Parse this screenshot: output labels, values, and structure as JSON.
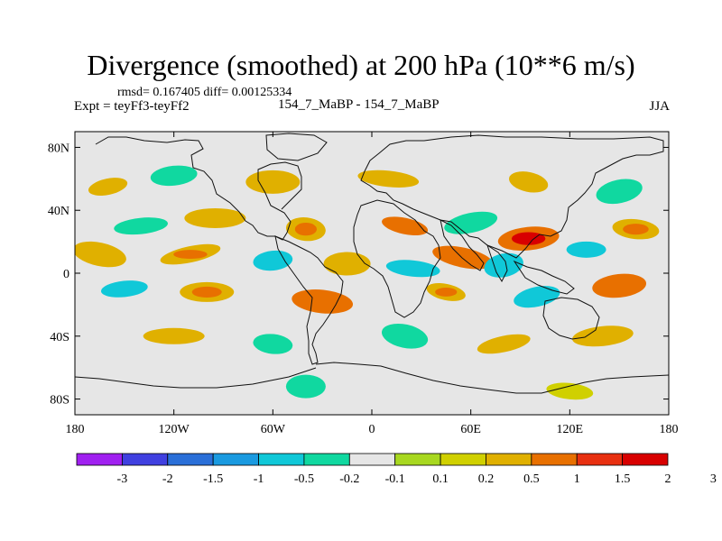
{
  "chart_data": {
    "type": "heatmap",
    "title": "Divergence (smoothed) at 200 hPa (10**6 m/s)",
    "stats_text": "rmsd= 0.167405 diff= 0.00125334",
    "left_label": "Expt = teyFf3-teyFf2",
    "center_label": "154_7_MaBP - 154_7_MaBP",
    "right_label": "JJA",
    "x_ticks": [
      {
        "value": -180,
        "label": "180"
      },
      {
        "value": -120,
        "label": "120W"
      },
      {
        "value": -60,
        "label": "60W"
      },
      {
        "value": 0,
        "label": "0"
      },
      {
        "value": 60,
        "label": "60E"
      },
      {
        "value": 120,
        "label": "120E"
      },
      {
        "value": 180,
        "label": "180"
      }
    ],
    "y_ticks": [
      {
        "value": 80,
        "label": "80N"
      },
      {
        "value": 40,
        "label": "40N"
      },
      {
        "value": 0,
        "label": "0"
      },
      {
        "value": -40,
        "label": "40S"
      },
      {
        "value": -80,
        "label": "80S"
      }
    ],
    "xlim": [
      -180,
      180
    ],
    "ylim": [
      -90,
      90
    ],
    "colorbar": {
      "colors": [
        "#a020f0",
        "#4040e0",
        "#2a6fd8",
        "#1a9ae0",
        "#10c8d8",
        "#10d8a0",
        "#e6e6e6",
        "#a8d820",
        "#d0d000",
        "#e0b000",
        "#e87000",
        "#e83010",
        "#d80000"
      ],
      "labels": [
        "-3",
        "-2",
        "-1.5",
        "-1",
        "-0.5",
        "-0.2",
        "-0.1",
        "0.1",
        "0.2",
        "0.5",
        "1",
        "1.5",
        "2",
        "3"
      ]
    },
    "anomalies": [
      {
        "lon": -160,
        "lat": 55,
        "v": 0.3
      },
      {
        "lon": -120,
        "lat": 62,
        "v": -0.3
      },
      {
        "lon": -60,
        "lat": 58,
        "v": 0.25
      },
      {
        "lon": 10,
        "lat": 60,
        "v": 0.3
      },
      {
        "lon": 95,
        "lat": 58,
        "v": 0.3
      },
      {
        "lon": 150,
        "lat": 52,
        "v": -0.3
      },
      {
        "lon": -140,
        "lat": 30,
        "v": -0.3
      },
      {
        "lon": -95,
        "lat": 35,
        "v": 0.35
      },
      {
        "lon": -40,
        "lat": 28,
        "v": 0.5
      },
      {
        "lon": 20,
        "lat": 30,
        "v": 0.6
      },
      {
        "lon": 60,
        "lat": 32,
        "v": -0.4
      },
      {
        "lon": 95,
        "lat": 22,
        "v": 1.0
      },
      {
        "lon": 130,
        "lat": 15,
        "v": -0.6
      },
      {
        "lon": 160,
        "lat": 28,
        "v": 0.5
      },
      {
        "lon": -165,
        "lat": 12,
        "v": 0.4
      },
      {
        "lon": -110,
        "lat": 12,
        "v": 0.5
      },
      {
        "lon": -60,
        "lat": 8,
        "v": -0.5
      },
      {
        "lon": -15,
        "lat": 6,
        "v": 0.4
      },
      {
        "lon": 25,
        "lat": 3,
        "v": -0.6
      },
      {
        "lon": 55,
        "lat": 10,
        "v": 0.6
      },
      {
        "lon": 80,
        "lat": 5,
        "v": -0.5
      },
      {
        "lon": -150,
        "lat": -10,
        "v": -0.6
      },
      {
        "lon": -100,
        "lat": -12,
        "v": 0.5
      },
      {
        "lon": -30,
        "lat": -18,
        "v": 0.6
      },
      {
        "lon": 45,
        "lat": -12,
        "v": 0.5
      },
      {
        "lon": 100,
        "lat": -15,
        "v": -0.5
      },
      {
        "lon": 150,
        "lat": -8,
        "v": 0.6
      },
      {
        "lon": -120,
        "lat": -40,
        "v": 0.35
      },
      {
        "lon": -60,
        "lat": -45,
        "v": -0.3
      },
      {
        "lon": 20,
        "lat": -40,
        "v": -0.3
      },
      {
        "lon": 80,
        "lat": -45,
        "v": 0.3
      },
      {
        "lon": 140,
        "lat": -40,
        "v": 0.3
      },
      {
        "lon": -40,
        "lat": -72,
        "v": -0.3
      },
      {
        "lon": 120,
        "lat": -75,
        "v": 0.2
      }
    ]
  }
}
